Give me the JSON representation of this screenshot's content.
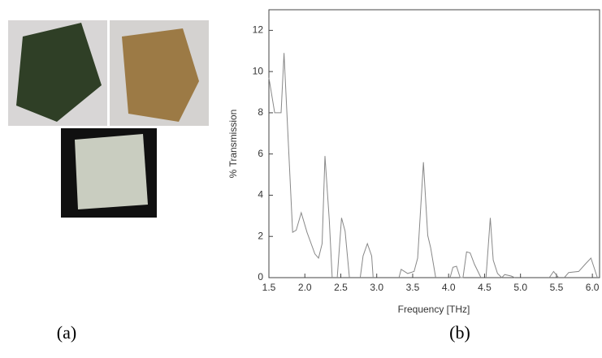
{
  "panel_labels": [
    "(a)",
    "(b)"
  ],
  "chart_data": {
    "type": "line",
    "x_label": "Frequency [THz]",
    "y_label": "% Transmission",
    "xlim": [
      1.5,
      6.1
    ],
    "ylim": [
      0,
      13
    ],
    "xticks": [
      1.5,
      {
        "value": 2,
        "label": "2.0"
      },
      2.5,
      {
        "value": 3,
        "label": "3.0"
      },
      3.5,
      {
        "value": 4,
        "label": "4.0"
      },
      4.5,
      {
        "value": 5,
        "label": "5.0"
      },
      5.5,
      {
        "value": 6,
        "label": "6.0"
      }
    ],
    "yticks": [
      0,
      2,
      4,
      6,
      8,
      10,
      12
    ],
    "series": [
      {
        "color": "#888888",
        "x": [
          1.5,
          1.58,
          1.67,
          1.71,
          1.83,
          1.88,
          1.95,
          2.03,
          2.14,
          2.19,
          2.24,
          2.28,
          2.34,
          2.38,
          2.42,
          2.45,
          2.51,
          2.56,
          2.62,
          2.7,
          2.77,
          2.81,
          2.87,
          2.93,
          2.95,
          3.1,
          3.31,
          3.34,
          3.43,
          3.52,
          3.57,
          3.65,
          3.71,
          3.75,
          3.82,
          3.92,
          4.02,
          4.06,
          4.11,
          4.16,
          4.2,
          4.25,
          4.3,
          4.36,
          4.45,
          4.5,
          4.52,
          4.58,
          4.62,
          4.68,
          4.74,
          4.78,
          4.87,
          4.92,
          5.2,
          5.4,
          5.46,
          5.53,
          5.57,
          5.61,
          5.67,
          5.81,
          5.9,
          5.98,
          6.07
        ],
        "values": [
          9.7,
          8.0,
          8.0,
          10.9,
          2.2,
          2.3,
          3.15,
          2.2,
          1.15,
          0.95,
          1.65,
          5.9,
          2.8,
          0,
          null,
          0,
          2.9,
          2.25,
          0,
          null,
          0,
          1.05,
          1.65,
          1.05,
          0,
          null,
          0,
          0.4,
          0.2,
          0.3,
          0.95,
          5.6,
          2.05,
          1.45,
          0,
          null,
          0,
          0.5,
          0.55,
          0,
          0,
          1.25,
          1.2,
          0.65,
          0,
          null,
          0,
          2.9,
          0.85,
          0.2,
          0,
          0.15,
          0.08,
          0,
          null,
          0,
          0.3,
          0,
          null,
          0,
          0.25,
          0.3,
          0.65,
          0.95,
          0
        ]
      }
    ]
  }
}
